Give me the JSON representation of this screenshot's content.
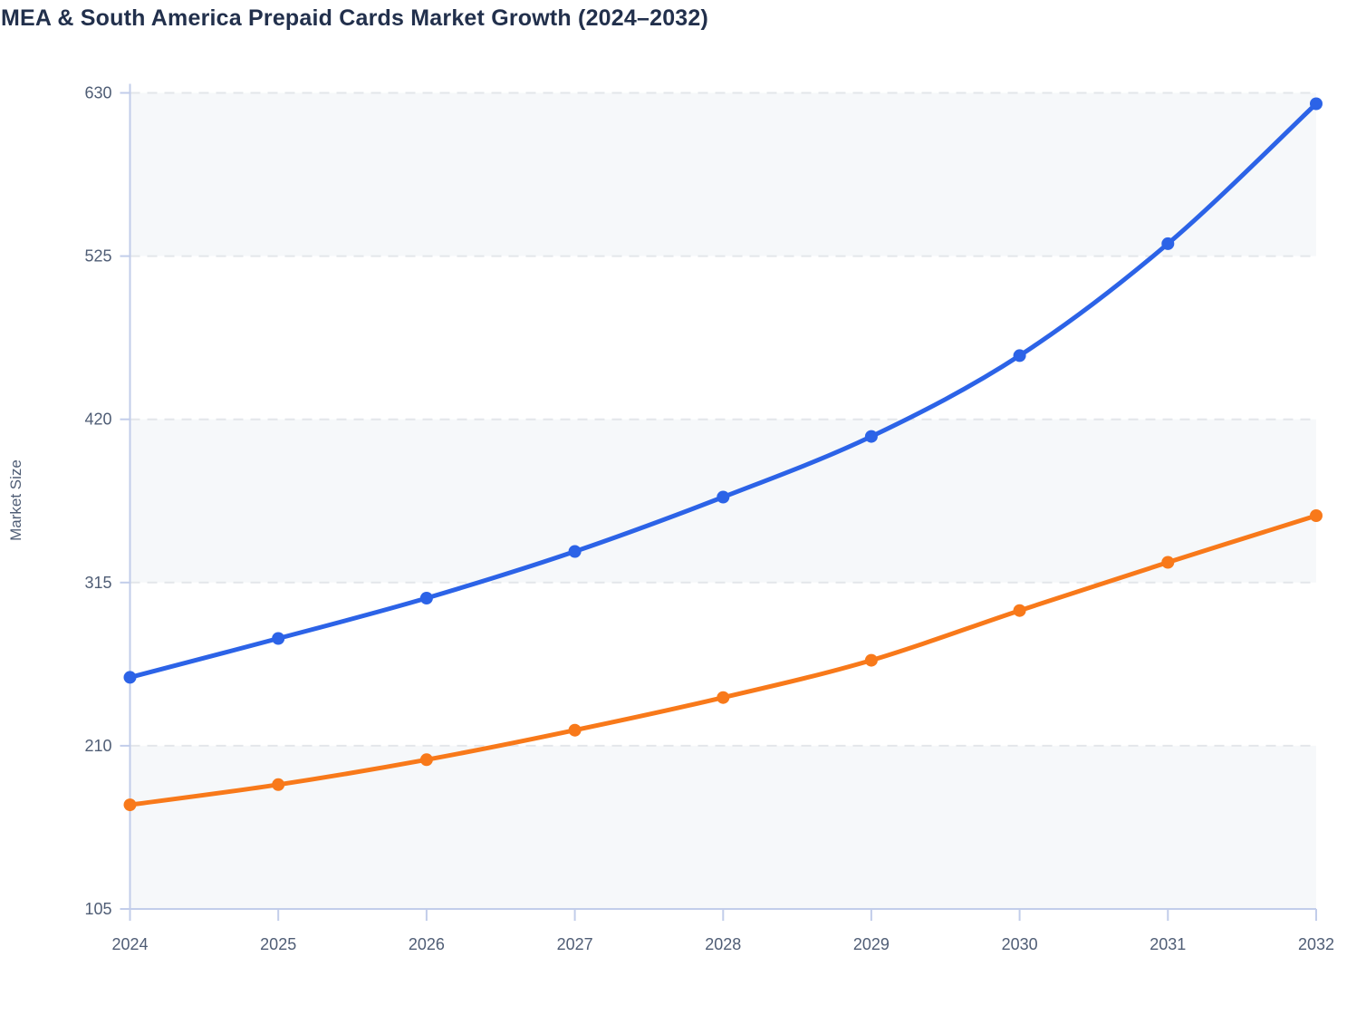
{
  "page": {
    "title": "MEA & South America Prepaid Cards Market Growth (2024–2032)"
  },
  "chart_data": {
    "type": "line",
    "title": "MEA & South America Prepaid Cards Market Growth (2024–2032)",
    "xlabel": "",
    "ylabel": "Market Size",
    "categories": [
      "2024",
      "2025",
      "2026",
      "2027",
      "2028",
      "2029",
      "2030",
      "2031",
      "2032"
    ],
    "series": [
      {
        "name": "blue-series",
        "color": "#2c63e7",
        "values": [
          254,
          279,
          305,
          335,
          370,
          409,
          461,
          533,
          623
        ]
      },
      {
        "name": "orange-series",
        "color": "#f8791a",
        "values": [
          172,
          185,
          201,
          220,
          241,
          265,
          297,
          328,
          358
        ]
      }
    ],
    "ylim": [
      105,
      630
    ],
    "yticks": [
      105,
      210,
      315,
      420,
      525,
      630
    ],
    "grid": "horizontal-dashed",
    "plot_bands": "alternating-horizontal",
    "legend": "none",
    "markers": "filled-circles"
  },
  "colors": {
    "band_fill": "#f6f8fa",
    "gridline": "#e3e6ea",
    "axis_line": "#c2cdea",
    "title_text": "#22304c",
    "tick_text": "#4f5d75",
    "axis_label_text": "#4f5d75"
  }
}
